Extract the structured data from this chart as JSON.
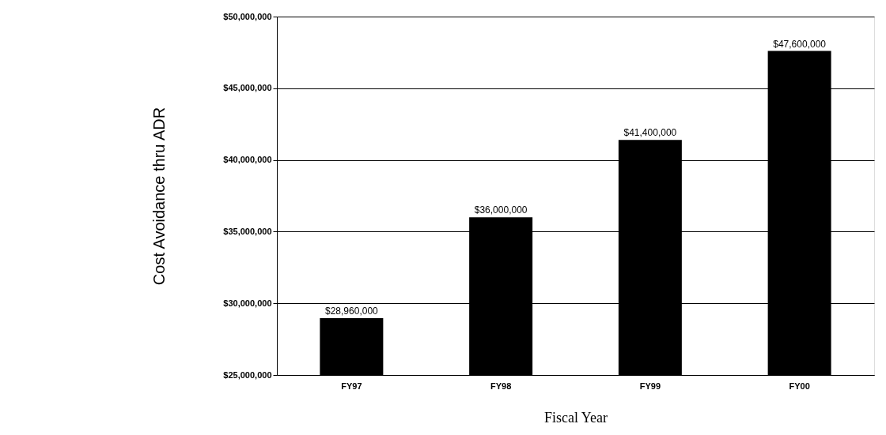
{
  "chart_data": {
    "type": "bar",
    "xlabel": "Fiscal Year",
    "ylabel": "Cost Avoidance thru ADR",
    "categories": [
      "FY97",
      "FY98",
      "FY99",
      "FY00"
    ],
    "values": [
      28960000,
      36000000,
      41400000,
      47600000
    ],
    "color": "#000000",
    "ylim": [
      25000000,
      50000000
    ],
    "yticks": [
      {
        "value": 25000000,
        "label": "$25,000,000"
      },
      {
        "value": 30000000,
        "label": "$30,000,000"
      },
      {
        "value": 35000000,
        "label": "$35,000,000"
      },
      {
        "value": 40000000,
        "label": "$40,000,000"
      },
      {
        "value": 45000000,
        "label": "$45,000,000"
      },
      {
        "value": 50000000,
        "label": "$50,000,000"
      }
    ],
    "value_labels": [
      "$28,960,000",
      "$36,000,000",
      "$41,400,000",
      "$47,600,000"
    ],
    "grid": "y"
  }
}
